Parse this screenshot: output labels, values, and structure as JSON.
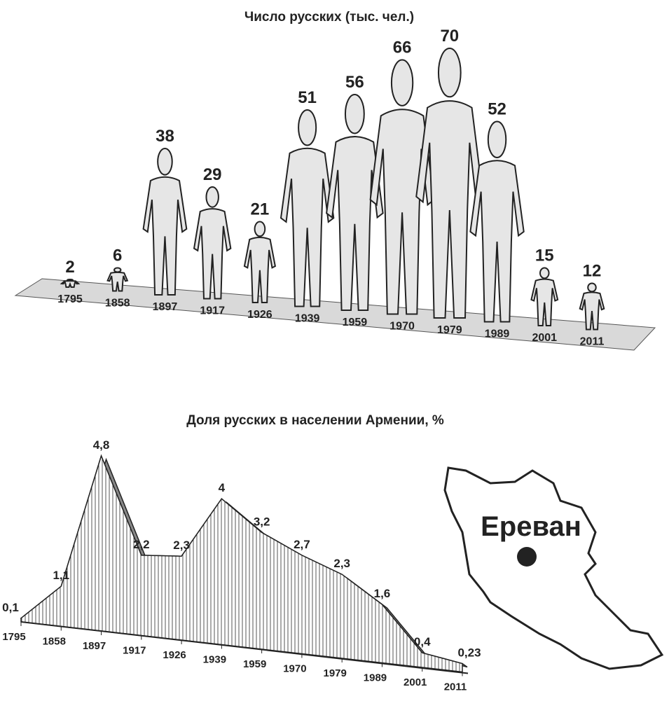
{
  "chart_data": [
    {
      "type": "pictograph",
      "title": "Число русских (тыс. чел.)",
      "categories": [
        "1795",
        "1858",
        "1897",
        "1917",
        "1926",
        "1939",
        "1959",
        "1970",
        "1979",
        "1989",
        "2001",
        "2011"
      ],
      "values": [
        2,
        6,
        38,
        29,
        21,
        51,
        56,
        66,
        70,
        52,
        15,
        12
      ],
      "color": "#e6e6e6"
    },
    {
      "type": "area",
      "title": "Доля русских в населении Армении, %",
      "categories": [
        "1795",
        "1858",
        "1897",
        "1917",
        "1926",
        "1939",
        "1959",
        "1970",
        "1979",
        "1989",
        "2001",
        "2011"
      ],
      "values": [
        0.1,
        1.1,
        4.8,
        2.2,
        2.3,
        4,
        3.2,
        2.7,
        2.3,
        1.6,
        0.4,
        0.23
      ],
      "value_labels": [
        "0,1",
        "1,1",
        "4,8",
        "2,2",
        "2,3",
        "4",
        "3,2",
        "2,7",
        "2,3",
        "1,6",
        "0,4",
        "0,23"
      ],
      "color": "#888888"
    }
  ],
  "map": {
    "label": "Ереван"
  }
}
